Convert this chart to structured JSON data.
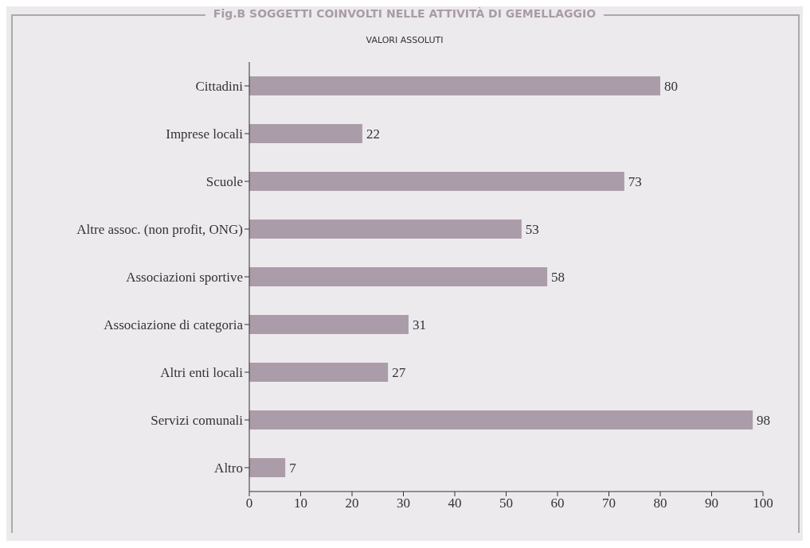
{
  "chart_data": {
    "type": "bar",
    "orientation": "horizontal",
    "title": "Fig.B SOGGETTI COINVOLTI NELLE ATTIVITÀ DI GEMELLAGGIO",
    "subtitle": "VALORI ASSOLUTI",
    "categories": [
      "Cittadini",
      "Imprese locali",
      "Scuole",
      "Altre assoc. (non profit, ONG)",
      "Associazioni sportive",
      "Associazione di categoria",
      "Altri enti locali",
      "Servizi comunali",
      "Altro"
    ],
    "values": [
      80,
      22,
      73,
      53,
      58,
      31,
      27,
      98,
      7
    ],
    "color": "#aa9da9",
    "xlim": [
      0,
      100
    ],
    "xticks": [
      0,
      10,
      20,
      30,
      40,
      50,
      60,
      70,
      80,
      90,
      100
    ],
    "data_labels": true
  }
}
